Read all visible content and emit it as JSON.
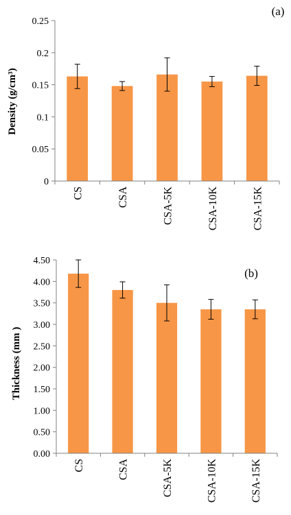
{
  "chart_data": [
    {
      "type": "bar",
      "panel_label": "(a)",
      "title": "",
      "xlabel": "",
      "ylabel": "Density (g/cm³)",
      "categories": [
        "CS",
        "CSA",
        "CSA-5K",
        "CSA-10K",
        "CSA-15K"
      ],
      "values": [
        0.163,
        0.148,
        0.166,
        0.155,
        0.164
      ],
      "errors": [
        0.019,
        0.007,
        0.026,
        0.008,
        0.015
      ],
      "ylim": [
        0,
        0.25
      ],
      "yticks": [
        0,
        0.05,
        0.1,
        0.15,
        0.2,
        0.25
      ],
      "ytick_labels": [
        "0",
        "0.05",
        "0.1",
        "0.15",
        "0.2",
        "0.25"
      ],
      "bar_color": "#f79646",
      "grid": false,
      "legend": "none"
    },
    {
      "type": "bar",
      "panel_label": "(b)",
      "title": "",
      "xlabel": "",
      "ylabel": "Thickness (mm )",
      "categories": [
        "CS",
        "CSA",
        "CSA-5K",
        "CSA-10K",
        "CSA-15K"
      ],
      "values": [
        4.18,
        3.8,
        3.5,
        3.35,
        3.35
      ],
      "errors": [
        0.32,
        0.19,
        0.42,
        0.23,
        0.22
      ],
      "ylim": [
        0,
        4.5
      ],
      "yticks": [
        0,
        0.5,
        1,
        1.5,
        2,
        2.5,
        3,
        3.5,
        4,
        4.5
      ],
      "ytick_labels": [
        "0.00",
        "0.50",
        "1.00",
        "1.50",
        "2.00",
        "2.50",
        "3.00",
        "3.50",
        "4.00",
        "4.50"
      ],
      "bar_color": "#f79646",
      "grid": false,
      "legend": "none"
    }
  ]
}
